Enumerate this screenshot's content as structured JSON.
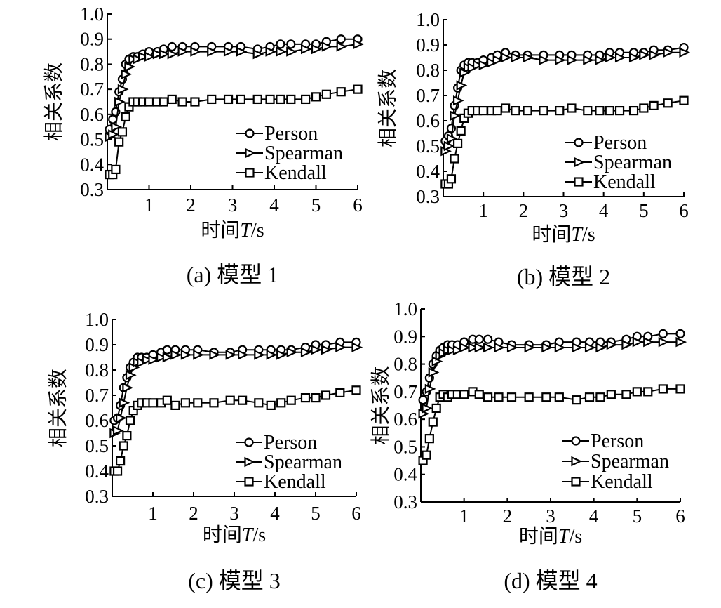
{
  "chart_data": [
    {
      "type": "line",
      "caption": "(a)  模型 1",
      "xlabel": "时间",
      "xlabel_var": "T",
      "xlabel_unit": "/s",
      "ylabel": "相关系数",
      "xlim": [
        0,
        6
      ],
      "ylim": [
        0.3,
        1.0
      ],
      "xticks": [
        "1",
        "2",
        "3",
        "4",
        "5",
        "6"
      ],
      "yticks": [
        "0.3",
        "0.4",
        "0.5",
        "0.6",
        "0.7",
        "0.8",
        "0.9",
        "1.0"
      ],
      "legend_position": "lower-right",
      "series": [
        {
          "name": "Person",
          "marker": "circle",
          "x": [
            0.05,
            0.13,
            0.2,
            0.28,
            0.36,
            0.44,
            0.52,
            0.62,
            0.72,
            0.85,
            1.0,
            1.2,
            1.35,
            1.55,
            1.8,
            2.1,
            2.5,
            2.9,
            3.2,
            3.6,
            3.9,
            4.15,
            4.4,
            4.75,
            5.0,
            5.25,
            5.6,
            6.0
          ],
          "y": [
            0.54,
            0.58,
            0.61,
            0.69,
            0.74,
            0.8,
            0.82,
            0.83,
            0.83,
            0.84,
            0.85,
            0.85,
            0.86,
            0.87,
            0.87,
            0.87,
            0.87,
            0.87,
            0.87,
            0.86,
            0.87,
            0.88,
            0.88,
            0.88,
            0.88,
            0.89,
            0.9,
            0.9
          ]
        },
        {
          "name": "Spearman",
          "marker": "triangle-right",
          "x": [
            0.05,
            0.13,
            0.2,
            0.28,
            0.36,
            0.44,
            0.52,
            0.62,
            0.72,
            0.85,
            1.0,
            1.2,
            1.35,
            1.55,
            1.8,
            2.1,
            2.5,
            2.9,
            3.2,
            3.6,
            3.9,
            4.15,
            4.4,
            4.75,
            5.0,
            5.25,
            5.6,
            6.0
          ],
          "y": [
            0.51,
            0.52,
            0.55,
            0.65,
            0.7,
            0.76,
            0.79,
            0.82,
            0.82,
            0.83,
            0.83,
            0.84,
            0.84,
            0.84,
            0.85,
            0.85,
            0.85,
            0.85,
            0.85,
            0.84,
            0.85,
            0.85,
            0.85,
            0.86,
            0.86,
            0.87,
            0.87,
            0.88
          ]
        },
        {
          "name": "Kendall",
          "marker": "square",
          "x": [
            0.05,
            0.13,
            0.2,
            0.28,
            0.36,
            0.44,
            0.52,
            0.62,
            0.72,
            0.85,
            1.0,
            1.2,
            1.35,
            1.55,
            1.8,
            2.1,
            2.5,
            2.9,
            3.2,
            3.6,
            3.9,
            4.15,
            4.4,
            4.75,
            5.0,
            5.25,
            5.6,
            6.0
          ],
          "y": [
            0.36,
            0.36,
            0.38,
            0.49,
            0.53,
            0.59,
            0.63,
            0.65,
            0.65,
            0.65,
            0.65,
            0.65,
            0.65,
            0.66,
            0.65,
            0.65,
            0.66,
            0.66,
            0.66,
            0.66,
            0.66,
            0.66,
            0.66,
            0.66,
            0.67,
            0.68,
            0.69,
            0.7
          ]
        }
      ]
    },
    {
      "type": "line",
      "caption": "(b)  模型 2",
      "xlabel": "时间",
      "xlabel_var": "T",
      "xlabel_unit": "/s",
      "ylabel": "相关系数",
      "xlim": [
        0,
        6
      ],
      "ylim": [
        0.3,
        1.0
      ],
      "xticks": [
        "1",
        "2",
        "3",
        "4",
        "5",
        "6"
      ],
      "yticks": [
        "0.3",
        "0.4",
        "0.5",
        "0.6",
        "0.7",
        "0.8",
        "0.9",
        "1.0"
      ],
      "legend_position": "lower-right",
      "series": [
        {
          "name": "Person",
          "marker": "circle",
          "x": [
            0.05,
            0.13,
            0.2,
            0.28,
            0.36,
            0.44,
            0.52,
            0.62,
            0.72,
            0.85,
            1.0,
            1.2,
            1.35,
            1.55,
            1.8,
            2.1,
            2.5,
            2.9,
            3.2,
            3.6,
            3.9,
            4.15,
            4.4,
            4.75,
            5.0,
            5.25,
            5.6,
            6.0
          ],
          "y": [
            0.52,
            0.54,
            0.57,
            0.66,
            0.73,
            0.8,
            0.82,
            0.83,
            0.83,
            0.83,
            0.84,
            0.85,
            0.86,
            0.87,
            0.86,
            0.86,
            0.86,
            0.86,
            0.86,
            0.86,
            0.86,
            0.87,
            0.87,
            0.87,
            0.87,
            0.88,
            0.88,
            0.89
          ]
        },
        {
          "name": "Spearman",
          "marker": "triangle-right",
          "x": [
            0.05,
            0.13,
            0.2,
            0.28,
            0.36,
            0.44,
            0.52,
            0.62,
            0.72,
            0.85,
            1.0,
            1.2,
            1.35,
            1.55,
            1.8,
            2.1,
            2.5,
            2.9,
            3.2,
            3.6,
            3.9,
            4.15,
            4.4,
            4.75,
            5.0,
            5.25,
            5.6,
            6.0
          ],
          "y": [
            0.48,
            0.5,
            0.53,
            0.62,
            0.68,
            0.74,
            0.79,
            0.81,
            0.81,
            0.82,
            0.82,
            0.83,
            0.84,
            0.85,
            0.85,
            0.85,
            0.84,
            0.84,
            0.84,
            0.84,
            0.84,
            0.85,
            0.85,
            0.85,
            0.86,
            0.86,
            0.87,
            0.87
          ]
        },
        {
          "name": "Kendall",
          "marker": "square",
          "x": [
            0.05,
            0.13,
            0.2,
            0.28,
            0.36,
            0.44,
            0.52,
            0.62,
            0.72,
            0.85,
            1.0,
            1.2,
            1.35,
            1.55,
            1.8,
            2.1,
            2.5,
            2.9,
            3.2,
            3.6,
            3.9,
            4.15,
            4.4,
            4.75,
            5.0,
            5.25,
            5.6,
            6.0
          ],
          "y": [
            0.35,
            0.35,
            0.37,
            0.45,
            0.51,
            0.56,
            0.61,
            0.63,
            0.64,
            0.64,
            0.64,
            0.64,
            0.64,
            0.65,
            0.64,
            0.64,
            0.64,
            0.64,
            0.65,
            0.64,
            0.64,
            0.64,
            0.64,
            0.64,
            0.65,
            0.66,
            0.67,
            0.68
          ]
        }
      ]
    },
    {
      "type": "line",
      "caption": "(c)  模型 3",
      "xlabel": "时间",
      "xlabel_var": "T",
      "xlabel_unit": "/s",
      "ylabel": "相关系数",
      "xlim": [
        0,
        6
      ],
      "ylim": [
        0.3,
        1.0
      ],
      "xticks": [
        "1",
        "2",
        "3",
        "4",
        "5",
        "6"
      ],
      "yticks": [
        "0.3",
        "0.4",
        "0.5",
        "0.6",
        "0.7",
        "0.8",
        "0.9",
        "1.0"
      ],
      "legend_position": "lower-right",
      "series": [
        {
          "name": "Person",
          "marker": "circle",
          "x": [
            0.05,
            0.13,
            0.2,
            0.28,
            0.36,
            0.44,
            0.52,
            0.62,
            0.72,
            0.85,
            1.0,
            1.2,
            1.35,
            1.55,
            1.8,
            2.1,
            2.5,
            2.9,
            3.2,
            3.6,
            3.9,
            4.15,
            4.4,
            4.75,
            5.0,
            5.25,
            5.6,
            6.0
          ],
          "y": [
            0.6,
            0.61,
            0.66,
            0.73,
            0.77,
            0.81,
            0.83,
            0.85,
            0.85,
            0.85,
            0.86,
            0.87,
            0.88,
            0.88,
            0.88,
            0.88,
            0.87,
            0.87,
            0.88,
            0.88,
            0.88,
            0.88,
            0.88,
            0.89,
            0.9,
            0.9,
            0.91,
            0.91
          ]
        },
        {
          "name": "Spearman",
          "marker": "triangle-right",
          "x": [
            0.05,
            0.13,
            0.2,
            0.28,
            0.36,
            0.44,
            0.52,
            0.62,
            0.72,
            0.85,
            1.0,
            1.2,
            1.35,
            1.55,
            1.8,
            2.1,
            2.5,
            2.9,
            3.2,
            3.6,
            3.9,
            4.15,
            4.4,
            4.75,
            5.0,
            5.25,
            5.6,
            6.0
          ],
          "y": [
            0.55,
            0.56,
            0.61,
            0.67,
            0.73,
            0.78,
            0.81,
            0.83,
            0.83,
            0.84,
            0.84,
            0.85,
            0.85,
            0.86,
            0.86,
            0.86,
            0.86,
            0.86,
            0.86,
            0.86,
            0.86,
            0.86,
            0.87,
            0.87,
            0.88,
            0.88,
            0.89,
            0.89
          ]
        },
        {
          "name": "Kendall",
          "marker": "square",
          "x": [
            0.05,
            0.13,
            0.2,
            0.28,
            0.36,
            0.44,
            0.52,
            0.62,
            0.72,
            0.85,
            1.0,
            1.2,
            1.35,
            1.55,
            1.8,
            2.1,
            2.5,
            2.9,
            3.2,
            3.6,
            3.9,
            4.15,
            4.4,
            4.75,
            5.0,
            5.25,
            5.6,
            6.0
          ],
          "y": [
            0.4,
            0.4,
            0.44,
            0.5,
            0.54,
            0.6,
            0.64,
            0.66,
            0.67,
            0.67,
            0.67,
            0.67,
            0.68,
            0.66,
            0.67,
            0.67,
            0.67,
            0.68,
            0.68,
            0.67,
            0.66,
            0.67,
            0.68,
            0.69,
            0.69,
            0.7,
            0.71,
            0.72
          ]
        }
      ]
    },
    {
      "type": "line",
      "caption": "(d)  模型 4",
      "xlabel": "时间",
      "xlabel_var": "T",
      "xlabel_unit": "/s",
      "ylabel": "相关系数",
      "xlim": [
        0,
        6
      ],
      "ylim": [
        0.3,
        1.0
      ],
      "xticks": [
        "1",
        "2",
        "3",
        "4",
        "5",
        "6"
      ],
      "yticks": [
        "0.3",
        "0.4",
        "0.5",
        "0.6",
        "0.7",
        "0.8",
        "0.9",
        "1.0"
      ],
      "legend_position": "lower-right",
      "series": [
        {
          "name": "Person",
          "marker": "circle",
          "x": [
            0.05,
            0.13,
            0.2,
            0.28,
            0.36,
            0.44,
            0.52,
            0.62,
            0.72,
            0.85,
            1.0,
            1.2,
            1.35,
            1.55,
            1.8,
            2.1,
            2.5,
            2.9,
            3.2,
            3.6,
            3.9,
            4.15,
            4.4,
            4.75,
            5.0,
            5.25,
            5.6,
            6.0
          ],
          "y": [
            0.67,
            0.7,
            0.75,
            0.8,
            0.83,
            0.85,
            0.86,
            0.87,
            0.87,
            0.87,
            0.88,
            0.89,
            0.89,
            0.89,
            0.88,
            0.87,
            0.87,
            0.87,
            0.88,
            0.88,
            0.88,
            0.88,
            0.88,
            0.89,
            0.9,
            0.9,
            0.91,
            0.91
          ]
        },
        {
          "name": "Spearman",
          "marker": "triangle-right",
          "x": [
            0.05,
            0.13,
            0.2,
            0.28,
            0.36,
            0.44,
            0.52,
            0.62,
            0.72,
            0.85,
            1.0,
            1.2,
            1.35,
            1.55,
            1.8,
            2.1,
            2.5,
            2.9,
            3.2,
            3.6,
            3.9,
            4.15,
            4.4,
            4.75,
            5.0,
            5.25,
            5.6,
            6.0
          ],
          "y": [
            0.62,
            0.64,
            0.71,
            0.77,
            0.81,
            0.83,
            0.84,
            0.85,
            0.85,
            0.85,
            0.86,
            0.86,
            0.86,
            0.86,
            0.86,
            0.86,
            0.86,
            0.86,
            0.86,
            0.86,
            0.86,
            0.86,
            0.87,
            0.87,
            0.88,
            0.88,
            0.88,
            0.88
          ]
        },
        {
          "name": "Kendall",
          "marker": "square",
          "x": [
            0.05,
            0.13,
            0.2,
            0.28,
            0.36,
            0.44,
            0.52,
            0.62,
            0.72,
            0.85,
            1.0,
            1.2,
            1.35,
            1.55,
            1.8,
            2.1,
            2.5,
            2.9,
            3.2,
            3.6,
            3.9,
            4.15,
            4.4,
            4.75,
            5.0,
            5.25,
            5.6,
            6.0
          ],
          "y": [
            0.45,
            0.47,
            0.53,
            0.59,
            0.64,
            0.68,
            0.69,
            0.68,
            0.69,
            0.69,
            0.69,
            0.7,
            0.69,
            0.68,
            0.68,
            0.68,
            0.68,
            0.68,
            0.68,
            0.67,
            0.68,
            0.68,
            0.69,
            0.69,
            0.7,
            0.7,
            0.71,
            0.71
          ]
        }
      ]
    }
  ]
}
